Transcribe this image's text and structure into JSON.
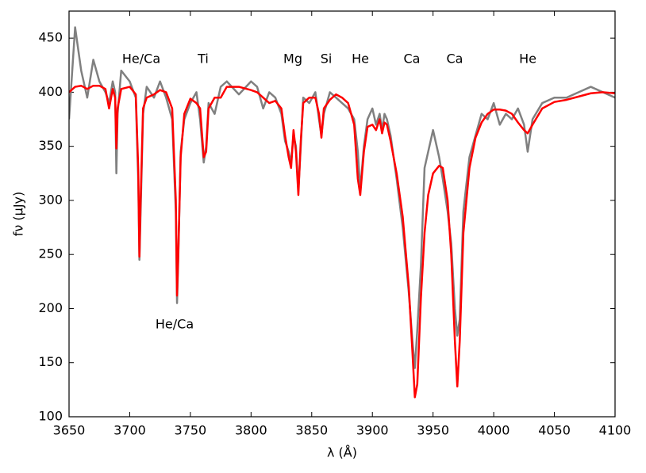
{
  "chart_data": {
    "type": "line",
    "xlabel": "λ (Å)",
    "ylabel": "fν (μJy)",
    "annotations": [
      "He/Ca",
      "Ti",
      "Mg",
      "Si",
      "He",
      "Ca",
      "Ca",
      "He",
      "He/Ca"
    ],
    "x": [
      3650,
      3655,
      3660,
      3665,
      3670,
      3675,
      3680,
      3683,
      3686,
      3688,
      3689,
      3690,
      3693,
      3700,
      3705,
      3707,
      3708,
      3709,
      3711,
      3714,
      3720,
      3725,
      3730,
      3735,
      3738,
      3739,
      3740,
      3742,
      3745,
      3750,
      3755,
      3758,
      3761,
      3763,
      3765,
      3770,
      3775,
      3780,
      3790,
      3800,
      3805,
      3810,
      3815,
      3820,
      3825,
      3828,
      3831,
      3833,
      3835,
      3837,
      3839,
      3841,
      3843,
      3848,
      3853,
      3856,
      3858,
      3860,
      3865,
      3870,
      3875,
      3880,
      3885,
      3888,
      3890,
      3893,
      3896,
      3900,
      3903,
      3906,
      3908,
      3910,
      3912,
      3915,
      3920,
      3925,
      3930,
      3933,
      3935,
      3937,
      3940,
      3943,
      3946,
      3950,
      3955,
      3958,
      3962,
      3965,
      3968,
      3970,
      3972,
      3975,
      3980,
      3985,
      3990,
      3995,
      4000,
      4005,
      4010,
      4015,
      4020,
      4025,
      4028,
      4032,
      4040,
      4050,
      4060,
      4070,
      4080,
      4090,
      4100
    ],
    "series": [
      {
        "color": "#808080",
        "values": [
          375,
          460,
          420,
          395,
          430,
          410,
          400,
          390,
          410,
          400,
          325,
          380,
          420,
          410,
          395,
          320,
          245,
          290,
          380,
          405,
          395,
          410,
          395,
          375,
          290,
          205,
          245,
          345,
          375,
          390,
          400,
          375,
          335,
          350,
          390,
          380,
          405,
          410,
          398,
          410,
          405,
          385,
          400,
          395,
          380,
          355,
          345,
          335,
          360,
          350,
          310,
          350,
          395,
          390,
          400,
          375,
          360,
          380,
          400,
          395,
          390,
          385,
          375,
          345,
          310,
          350,
          375,
          385,
          370,
          380,
          365,
          380,
          375,
          360,
          320,
          275,
          215,
          170,
          145,
          180,
          240,
          330,
          345,
          365,
          340,
          320,
          290,
          260,
          200,
          175,
          190,
          290,
          340,
          360,
          380,
          375,
          390,
          370,
          380,
          375,
          385,
          370,
          345,
          375,
          390,
          395,
          395,
          400,
          405,
          400,
          395
        ]
      },
      {
        "color": "#ff0000",
        "values": [
          400,
          405,
          406,
          403,
          406,
          406,
          403,
          385,
          403,
          395,
          348,
          385,
          403,
          405,
          398,
          330,
          248,
          300,
          385,
          395,
          398,
          402,
          400,
          385,
          300,
          212,
          250,
          340,
          380,
          394,
          390,
          385,
          340,
          345,
          385,
          395,
          395,
          405,
          405,
          402,
          400,
          395,
          390,
          392,
          385,
          360,
          340,
          330,
          365,
          345,
          305,
          355,
          390,
          395,
          395,
          380,
          358,
          385,
          393,
          398,
          395,
          390,
          370,
          320,
          305,
          345,
          368,
          370,
          365,
          375,
          362,
          372,
          370,
          355,
          325,
          285,
          220,
          160,
          118,
          130,
          210,
          270,
          305,
          325,
          332,
          330,
          300,
          250,
          170,
          128,
          170,
          270,
          330,
          358,
          372,
          380,
          384,
          384,
          383,
          380,
          372,
          365,
          362,
          370,
          385,
          391,
          393,
          396,
          399,
          400,
          399
        ]
      }
    ],
    "xlim": [
      3650,
      4100
    ],
    "xticks": [
      3650,
      3700,
      3750,
      3800,
      3850,
      3900,
      3950,
      4000,
      4050,
      4100
    ],
    "ylim": [
      100,
      475
    ],
    "yticks": [
      100,
      150,
      200,
      250,
      300,
      350,
      400,
      450
    ]
  }
}
